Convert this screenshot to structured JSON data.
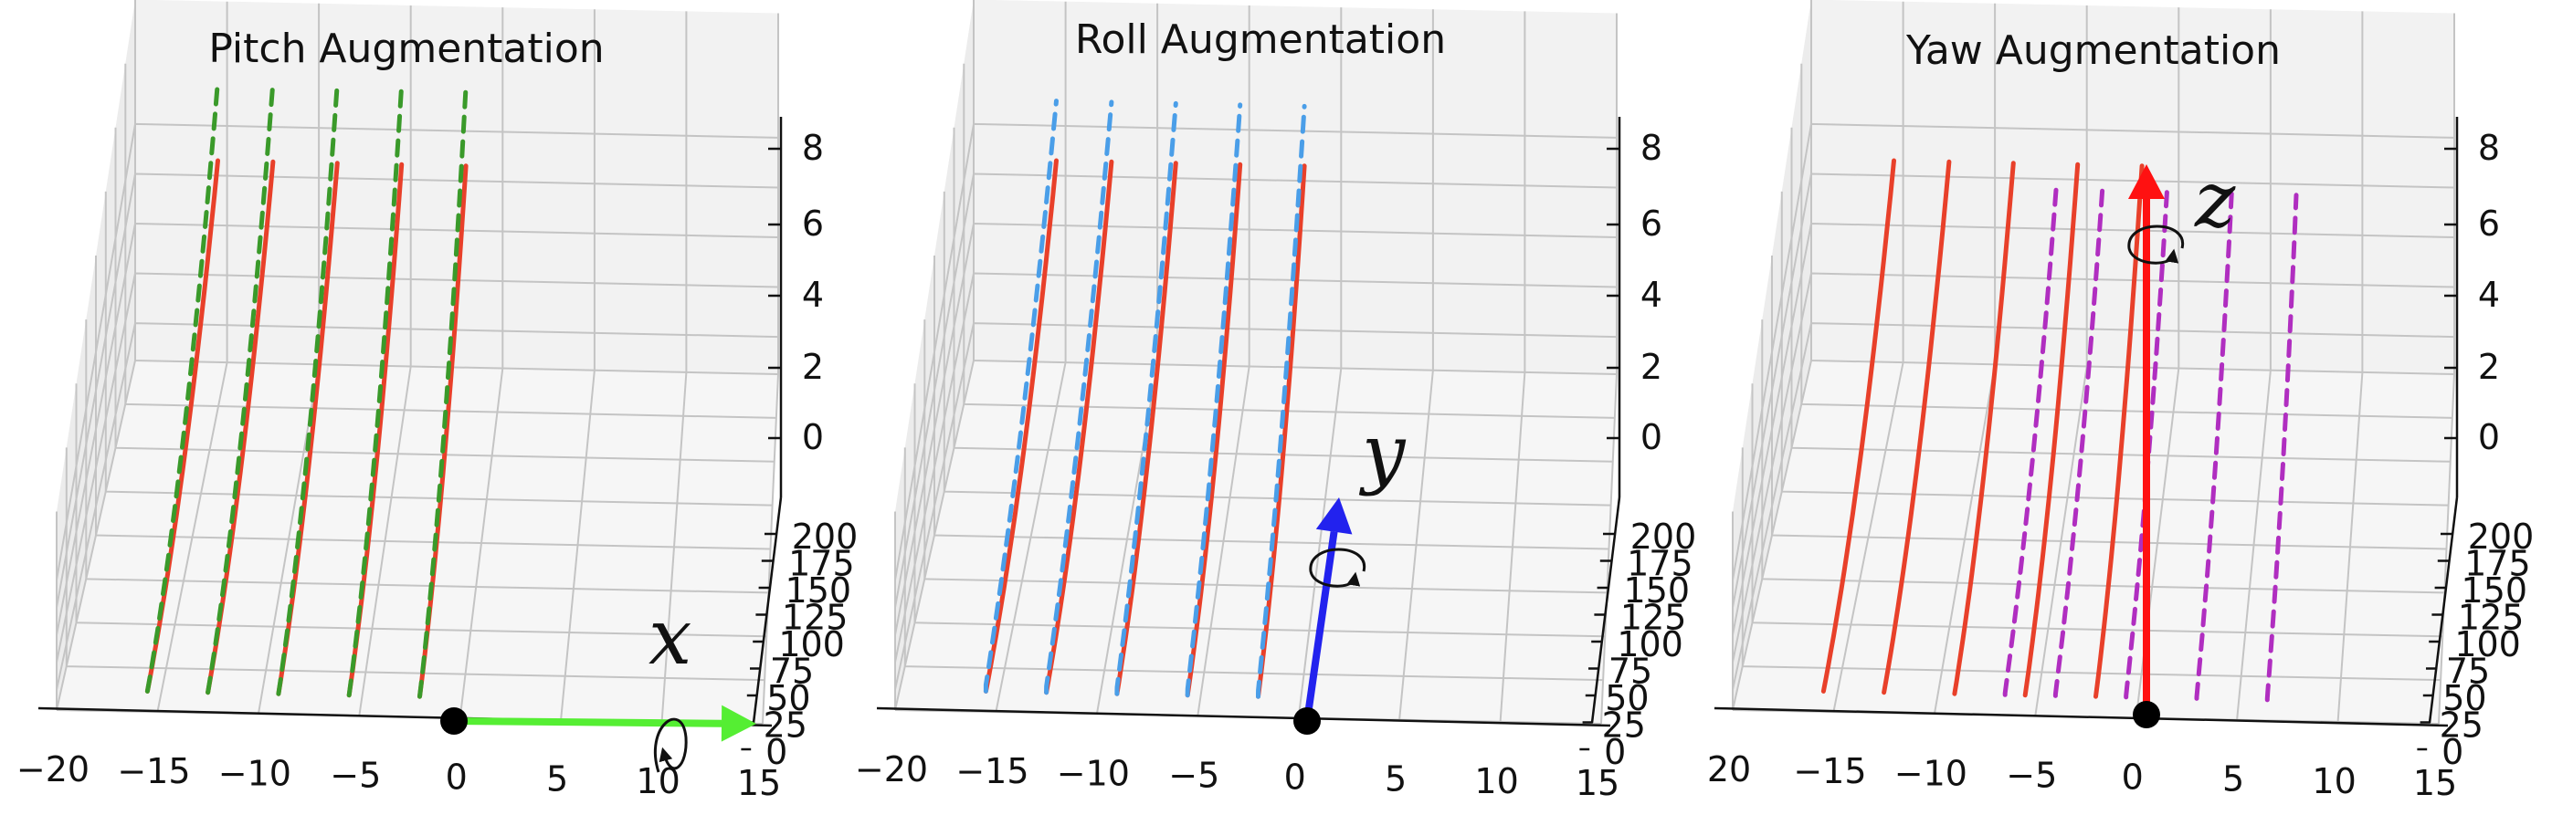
{
  "chart_data": [
    {
      "type": "line",
      "title": "Pitch Augmentation",
      "x_ticks": [
        "−20",
        "−15",
        "−10",
        "−5",
        "0",
        "5",
        "10",
        "15"
      ],
      "z_ticks": [
        "8",
        "6",
        "4",
        "2",
        "0"
      ],
      "y_ticks": [
        "200",
        "175",
        "150",
        "125",
        "100",
        "75",
        "50",
        "25",
        "0"
      ],
      "grid": true,
      "rotation_axis_label": "x",
      "colors": {
        "original": "#e8402a",
        "augmented": "#3a9a2a",
        "axis_arrow": "#55ee33"
      },
      "series": [
        {
          "style": "solid",
          "lines": [
            {
              "x": -15.5,
              "pts": [
                [
                  0,
                  0
                ],
                [
                  7,
                  0
                ],
                [
                  17,
                  6.6
                ]
              ]
            },
            {
              "x": -12.5,
              "pts": [
                [
                  0,
                  0
                ],
                [
                  7,
                  0
                ],
                [
                  17,
                  6.6
                ]
              ]
            },
            {
              "x": -9,
              "pts": [
                [
                  0,
                  0
                ],
                [
                  7,
                  0
                ],
                [
                  17,
                  6.6
                ]
              ]
            },
            {
              "x": -5.5,
              "pts": [
                [
                  0,
                  0
                ],
                [
                  7,
                  0
                ],
                [
                  17,
                  6.6
                ]
              ]
            },
            {
              "x": -2,
              "pts": [
                [
                  0,
                  0
                ],
                [
                  7,
                  0
                ],
                [
                  17,
                  6.6
                ]
              ]
            }
          ]
        },
        {
          "style": "dashed",
          "lines": [
            {
              "x": -15.5,
              "pts": [
                [
                  0,
                  0
                ],
                [
                  7,
                  0.9
                ],
                [
                  17,
                  9.8
                ]
              ]
            },
            {
              "x": -12.5,
              "pts": [
                [
                  0,
                  0
                ],
                [
                  7,
                  0.9
                ],
                [
                  17,
                  9.8
                ]
              ]
            },
            {
              "x": -9,
              "pts": [
                [
                  0,
                  0
                ],
                [
                  7,
                  0.9
                ],
                [
                  17,
                  9.8
                ]
              ]
            },
            {
              "x": -5.5,
              "pts": [
                [
                  0,
                  0
                ],
                [
                  7,
                  0.9
                ],
                [
                  17,
                  9.8
                ]
              ]
            },
            {
              "x": -2,
              "pts": [
                [
                  0,
                  0
                ],
                [
                  7,
                  0.9
                ],
                [
                  17,
                  9.8
                ]
              ]
            }
          ]
        }
      ]
    },
    {
      "type": "line",
      "title": "Roll Augmentation",
      "x_ticks": [
        "−20",
        "−15",
        "−10",
        "−5",
        "0",
        "5",
        "10",
        "15"
      ],
      "z_ticks": [
        "8",
        "6",
        "4",
        "2",
        "0"
      ],
      "y_ticks": [
        "200",
        "175",
        "150",
        "125",
        "100",
        "75",
        "50",
        "25",
        "0"
      ],
      "grid": true,
      "rotation_axis_label": "y",
      "colors": {
        "original": "#e8402a",
        "augmented": "#4a9ee8",
        "axis_arrow": "#2222ee"
      },
      "series": [
        {
          "style": "solid",
          "lines": [
            {
              "x": -15.5,
              "pts": [
                [
                  0,
                  0
                ],
                [
                  7,
                  0
                ],
                [
                  17,
                  6.6
                ]
              ]
            },
            {
              "x": -12.5,
              "pts": [
                [
                  0,
                  0
                ],
                [
                  7,
                  0
                ],
                [
                  17,
                  6.6
                ]
              ]
            },
            {
              "x": -9,
              "pts": [
                [
                  0,
                  0
                ],
                [
                  7,
                  0
                ],
                [
                  17,
                  6.6
                ]
              ]
            },
            {
              "x": -5.5,
              "pts": [
                [
                  0,
                  0
                ],
                [
                  7,
                  0
                ],
                [
                  17,
                  6.6
                ]
              ]
            },
            {
              "x": -2,
              "pts": [
                [
                  0,
                  0
                ],
                [
                  7,
                  0
                ],
                [
                  17,
                  6.6
                ]
              ]
            }
          ]
        },
        {
          "style": "dashed",
          "lines": [
            {
              "x": -15.5,
              "pts": [
                [
                  -1.4,
                  0
                ],
                [
                  7,
                  2.6
                ],
                [
                  17,
                  9
                ]
              ]
            },
            {
              "x": -12.5,
              "pts": [
                [
                  -1.4,
                  0
                ],
                [
                  7,
                  2.6
                ],
                [
                  17,
                  9
                ]
              ]
            },
            {
              "x": -9,
              "pts": [
                [
                  -1.4,
                  0
                ],
                [
                  7,
                  2.6
                ],
                [
                  17,
                  9
                ]
              ]
            },
            {
              "x": -5.5,
              "pts": [
                [
                  -1.4,
                  0
                ],
                [
                  7,
                  2.6
                ],
                [
                  17,
                  9
                ]
              ]
            },
            {
              "x": -2,
              "pts": [
                [
                  -1.4,
                  0
                ],
                [
                  7,
                  2.6
                ],
                [
                  17,
                  9
                ]
              ]
            }
          ]
        }
      ]
    },
    {
      "type": "line",
      "title": "Yaw Augmentation",
      "x_ticks": [
        "20",
        "−15",
        "−10",
        "−5",
        "0",
        "5",
        "10",
        "15"
      ],
      "z_ticks": [
        "8",
        "6",
        "4",
        "2",
        "0"
      ],
      "y_ticks": [
        "200",
        "175",
        "150",
        "125",
        "100",
        "75",
        "50",
        "25",
        "0"
      ],
      "grid": true,
      "rotation_axis_label": "z",
      "colors": {
        "original": "#e8402a",
        "augmented": "#b02ec0",
        "axis_arrow": "#ff1111"
      },
      "series": [
        {
          "style": "solid",
          "lines": [
            {
              "x": -15.5,
              "pts": [
                [
                  0,
                  0
                ],
                [
                  7,
                  0
                ],
                [
                  17,
                  6.6
                ]
              ]
            },
            {
              "x": -12.5,
              "pts": [
                [
                  0,
                  0
                ],
                [
                  7,
                  0
                ],
                [
                  17,
                  6.6
                ]
              ]
            },
            {
              "x": -9,
              "pts": [
                [
                  0,
                  0
                ],
                [
                  7,
                  0
                ],
                [
                  17,
                  6.6
                ]
              ]
            },
            {
              "x": -5.5,
              "pts": [
                [
                  0,
                  0
                ],
                [
                  7,
                  0
                ],
                [
                  17,
                  6.6
                ]
              ]
            },
            {
              "x": -2,
              "pts": [
                [
                  0,
                  0
                ],
                [
                  7,
                  0
                ],
                [
                  17,
                  6.6
                ]
              ]
            }
          ]
        },
        {
          "style": "dashed",
          "lines": [
            {
              "x": -6.5,
              "pts": [
                [
                  -2.5,
                  0
                ],
                [
                  6,
                  0
                ],
                [
                  16,
                  6.6
                ]
              ]
            },
            {
              "x": -4,
              "pts": [
                [
                  -2.5,
                  0
                ],
                [
                  6,
                  0
                ],
                [
                  16,
                  6.6
                ]
              ]
            },
            {
              "x": -0.5,
              "pts": [
                [
                  -2.5,
                  0
                ],
                [
                  6,
                  0
                ],
                [
                  16,
                  6.6
                ]
              ]
            },
            {
              "x": 3,
              "pts": [
                [
                  -2.5,
                  0
                ],
                [
                  6,
                  0
                ],
                [
                  16,
                  6.6
                ]
              ]
            },
            {
              "x": 6.5,
              "pts": [
                [
                  -2.5,
                  0
                ],
                [
                  6,
                  0
                ],
                [
                  16,
                  6.6
                ]
              ]
            }
          ]
        }
      ]
    }
  ]
}
